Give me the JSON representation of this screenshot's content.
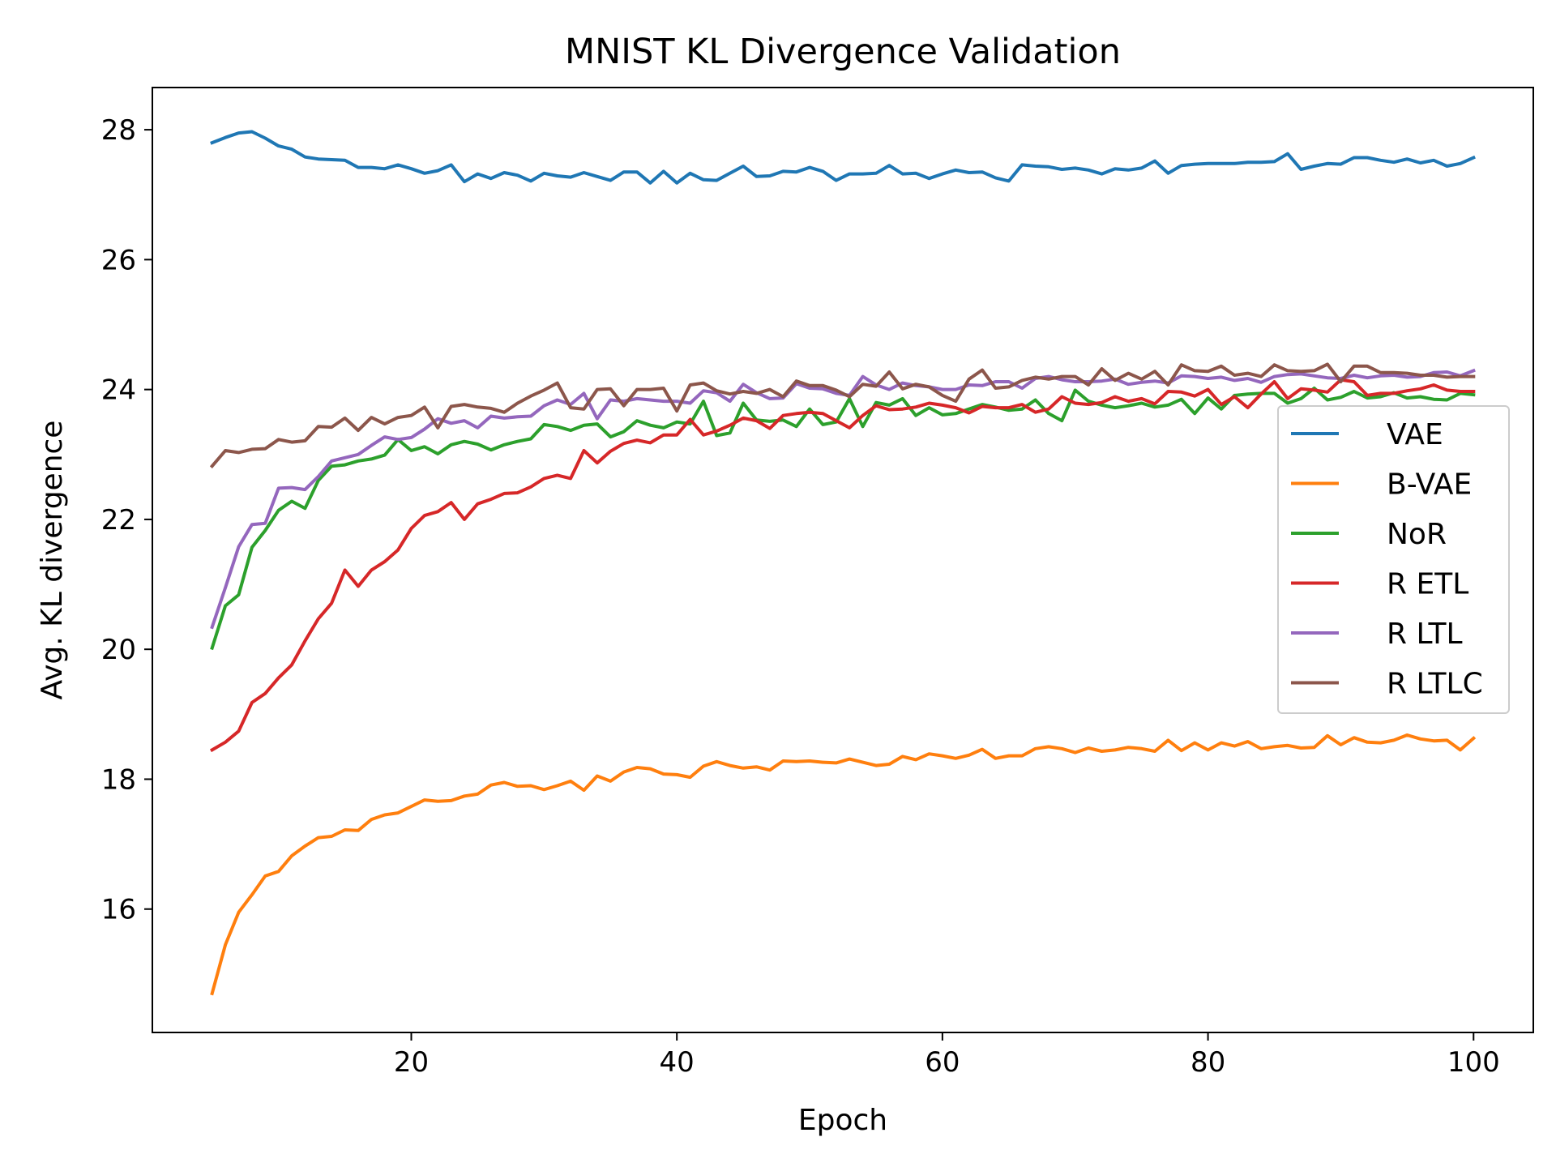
{
  "chart_data": {
    "type": "line",
    "title": "MNIST KL Divergence Validation",
    "xlabel": "Epoch",
    "ylabel": "Avg. KL divergence",
    "xlim": [
      0.5,
      104.5
    ],
    "ylim": [
      14.1,
      28.65
    ],
    "xticks": [
      20,
      40,
      60,
      80,
      100
    ],
    "yticks": [
      16,
      18,
      20,
      22,
      24,
      26,
      28
    ],
    "grid": false,
    "legend_position": "center-right",
    "x_start": 5,
    "x_end": 100,
    "series": [
      {
        "name": "VAE",
        "color": "#1f77b4",
        "values": [
          27.8,
          27.88,
          27.95,
          27.97,
          27.87,
          27.75,
          27.7,
          27.58,
          27.55,
          27.54,
          27.53,
          27.42,
          27.42,
          27.4,
          27.46,
          27.4,
          27.33,
          27.37,
          27.46,
          27.2,
          27.32,
          27.25,
          27.34,
          27.3,
          27.21,
          27.33,
          27.29,
          27.27,
          27.34,
          27.28,
          27.22,
          27.35,
          27.35,
          27.18,
          27.36,
          27.18,
          27.33,
          27.23,
          27.22,
          27.33,
          27.44,
          27.28,
          27.29,
          27.36,
          27.35,
          27.42,
          27.36,
          27.22,
          27.32,
          27.32,
          27.33,
          27.45,
          27.32,
          27.33,
          27.25,
          27.32,
          27.38,
          27.34,
          27.35,
          27.26,
          27.21,
          27.46,
          27.44,
          27.43,
          27.39,
          27.41,
          27.38,
          27.32,
          27.4,
          27.38,
          27.41,
          27.52,
          27.33,
          27.45,
          27.47,
          27.48,
          27.48,
          27.48,
          27.5,
          27.5,
          27.51,
          27.63,
          27.39,
          27.44,
          27.48,
          27.47,
          27.57,
          27.57,
          27.53,
          27.5,
          27.55,
          27.49,
          27.53,
          27.44,
          27.48,
          27.57
        ]
      },
      {
        "name": "B-VAE",
        "color": "#ff7f0e",
        "values": [
          14.7,
          15.45,
          15.95,
          16.22,
          16.51,
          16.58,
          16.82,
          16.97,
          17.1,
          17.12,
          17.22,
          17.21,
          17.38,
          17.45,
          17.48,
          17.58,
          17.68,
          17.66,
          17.67,
          17.74,
          17.77,
          17.91,
          17.95,
          17.89,
          17.9,
          17.84,
          17.9,
          17.97,
          17.83,
          18.05,
          17.97,
          18.11,
          18.18,
          18.16,
          18.08,
          18.07,
          18.03,
          18.2,
          18.27,
          18.21,
          18.17,
          18.19,
          18.14,
          18.28,
          18.27,
          18.28,
          18.26,
          18.25,
          18.31,
          18.26,
          18.21,
          18.23,
          18.35,
          18.3,
          18.39,
          18.36,
          18.32,
          18.37,
          18.46,
          18.32,
          18.36,
          18.36,
          18.47,
          18.5,
          18.47,
          18.41,
          18.48,
          18.43,
          18.45,
          18.49,
          18.47,
          18.43,
          18.6,
          18.44,
          18.56,
          18.45,
          18.56,
          18.51,
          18.58,
          18.47,
          18.5,
          18.52,
          18.48,
          18.49,
          18.67,
          18.53,
          18.64,
          18.57,
          18.56,
          18.6,
          18.68,
          18.62,
          18.59,
          18.6,
          18.45,
          18.63
        ]
      },
      {
        "name": "NoR",
        "color": "#2ca02c",
        "values": [
          20.02,
          20.67,
          20.84,
          21.57,
          21.83,
          22.14,
          22.28,
          22.17,
          22.6,
          22.82,
          22.84,
          22.9,
          22.93,
          22.99,
          23.23,
          23.06,
          23.12,
          23.01,
          23.15,
          23.2,
          23.16,
          23.07,
          23.15,
          23.2,
          23.24,
          23.46,
          23.43,
          23.37,
          23.45,
          23.47,
          23.27,
          23.35,
          23.52,
          23.45,
          23.41,
          23.5,
          23.47,
          23.82,
          23.29,
          23.33,
          23.79,
          23.53,
          23.51,
          23.53,
          23.43,
          23.7,
          23.46,
          23.5,
          23.86,
          23.43,
          23.8,
          23.76,
          23.86,
          23.6,
          23.72,
          23.61,
          23.63,
          23.7,
          23.77,
          23.73,
          23.68,
          23.7,
          23.84,
          23.63,
          23.52,
          23.99,
          23.82,
          23.76,
          23.72,
          23.75,
          23.79,
          23.73,
          23.76,
          23.85,
          23.63,
          23.87,
          23.7,
          23.91,
          23.93,
          23.94,
          23.94,
          23.79,
          23.86,
          24.02,
          23.84,
          23.88,
          23.97,
          23.87,
          23.89,
          23.95,
          23.87,
          23.89,
          23.85,
          23.84,
          23.94,
          23.92
        ]
      },
      {
        "name": "R ETL",
        "color": "#d62728",
        "values": [
          18.45,
          18.57,
          18.74,
          19.18,
          19.32,
          19.56,
          19.76,
          20.13,
          20.47,
          20.71,
          21.22,
          20.97,
          21.22,
          21.35,
          21.53,
          21.86,
          22.06,
          22.12,
          22.26,
          22.0,
          22.24,
          22.31,
          22.4,
          22.41,
          22.5,
          22.63,
          22.68,
          22.63,
          23.06,
          22.87,
          23.05,
          23.17,
          23.22,
          23.18,
          23.3,
          23.3,
          23.54,
          23.3,
          23.36,
          23.45,
          23.56,
          23.52,
          23.4,
          23.6,
          23.63,
          23.65,
          23.63,
          23.52,
          23.41,
          23.6,
          23.75,
          23.69,
          23.7,
          23.73,
          23.79,
          23.76,
          23.72,
          23.64,
          23.74,
          23.72,
          23.72,
          23.77,
          23.65,
          23.7,
          23.89,
          23.79,
          23.77,
          23.8,
          23.89,
          23.82,
          23.86,
          23.78,
          23.97,
          23.96,
          23.9,
          24.0,
          23.77,
          23.89,
          23.72,
          23.93,
          24.12,
          23.86,
          24.01,
          23.99,
          23.96,
          24.15,
          24.12,
          23.91,
          23.94,
          23.94,
          23.98,
          24.01,
          24.07,
          23.99,
          23.97,
          23.97
        ]
      },
      {
        "name": "R LTL",
        "color": "#9467bd",
        "values": [
          20.34,
          20.95,
          21.58,
          21.92,
          21.94,
          22.48,
          22.49,
          22.46,
          22.66,
          22.9,
          22.95,
          23.0,
          23.14,
          23.27,
          23.23,
          23.26,
          23.39,
          23.55,
          23.48,
          23.52,
          23.41,
          23.59,
          23.56,
          23.58,
          23.59,
          23.75,
          23.84,
          23.77,
          23.94,
          23.55,
          23.84,
          23.82,
          23.86,
          23.84,
          23.82,
          23.82,
          23.79,
          23.98,
          23.95,
          23.82,
          24.08,
          23.95,
          23.86,
          23.87,
          24.09,
          24.02,
          24.01,
          23.94,
          23.91,
          24.2,
          24.07,
          24.0,
          24.1,
          24.06,
          24.04,
          24.0,
          24.0,
          24.07,
          24.06,
          24.12,
          24.12,
          24.02,
          24.17,
          24.2,
          24.15,
          24.12,
          24.12,
          24.13,
          24.16,
          24.08,
          24.11,
          24.13,
          24.1,
          24.21,
          24.2,
          24.17,
          24.19,
          24.14,
          24.17,
          24.11,
          24.2,
          24.23,
          24.24,
          24.21,
          24.18,
          24.17,
          24.22,
          24.18,
          24.21,
          24.22,
          24.19,
          24.2,
          24.26,
          24.27,
          24.21,
          24.29
        ]
      },
      {
        "name": "R LTLC",
        "color": "#8c564b",
        "values": [
          22.82,
          23.06,
          23.03,
          23.08,
          23.09,
          23.23,
          23.19,
          23.21,
          23.43,
          23.42,
          23.56,
          23.37,
          23.57,
          23.47,
          23.57,
          23.6,
          23.73,
          23.41,
          23.74,
          23.77,
          23.73,
          23.71,
          23.65,
          23.79,
          23.9,
          23.99,
          24.1,
          23.72,
          23.7,
          24.0,
          24.01,
          23.75,
          24.0,
          24.0,
          24.02,
          23.67,
          24.07,
          24.1,
          23.98,
          23.93,
          23.97,
          23.94,
          24.0,
          23.89,
          24.13,
          24.06,
          24.06,
          23.99,
          23.89,
          24.08,
          24.05,
          24.27,
          24.01,
          24.08,
          24.04,
          23.91,
          23.82,
          24.16,
          24.3,
          24.02,
          24.04,
          24.14,
          24.19,
          24.16,
          24.2,
          24.2,
          24.07,
          24.32,
          24.14,
          24.25,
          24.16,
          24.28,
          24.07,
          24.38,
          24.29,
          24.28,
          24.36,
          24.22,
          24.25,
          24.2,
          24.38,
          24.29,
          24.28,
          24.29,
          24.39,
          24.12,
          24.36,
          24.36,
          24.26,
          24.26,
          24.25,
          24.22,
          24.22,
          24.19,
          24.2,
          24.2
        ]
      }
    ]
  }
}
